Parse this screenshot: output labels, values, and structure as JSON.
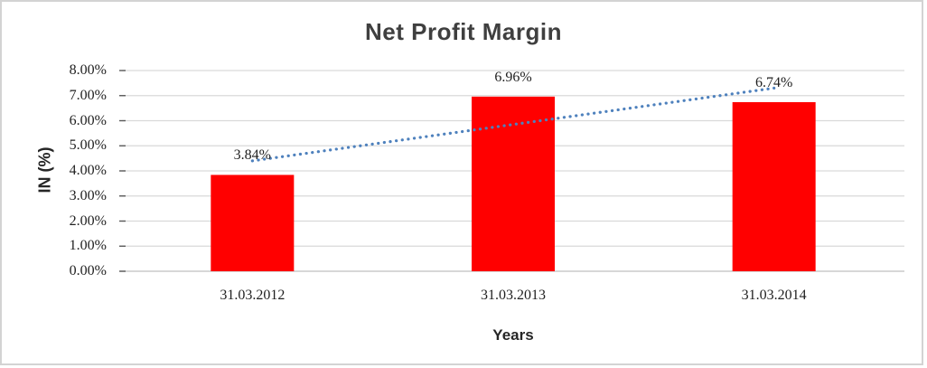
{
  "chart_data": {
    "type": "bar",
    "title": "Net Profit Margin",
    "xlabel": "Years",
    "ylabel": "IN (%)",
    "categories": [
      "31.03.2012",
      "31.03.2013",
      "31.03.2014"
    ],
    "values": [
      3.84,
      6.96,
      6.74
    ],
    "data_labels": [
      "3.84%",
      "6.96%",
      "6.74%"
    ],
    "ylim": [
      0,
      8
    ],
    "ytick_step": 1,
    "ytick_labels": [
      "0.00%",
      "1.00%",
      "2.00%",
      "3.00%",
      "4.00%",
      "5.00%",
      "6.00%",
      "7.00%",
      "8.00%"
    ],
    "grid": true,
    "legend": "none",
    "bar_color": "#ff0000",
    "gridline_color": "#d9d9d9",
    "axis_line_color": "#bfbfbf",
    "tick_mark_color": "#595959",
    "number_text_color": "#1f1f1f",
    "title_color": "#3f3f3f",
    "trendline": {
      "type": "linear",
      "style": "dotted",
      "color": "#4e81bd",
      "start_value_pct": 4.4,
      "end_value_pct": 7.3
    }
  }
}
